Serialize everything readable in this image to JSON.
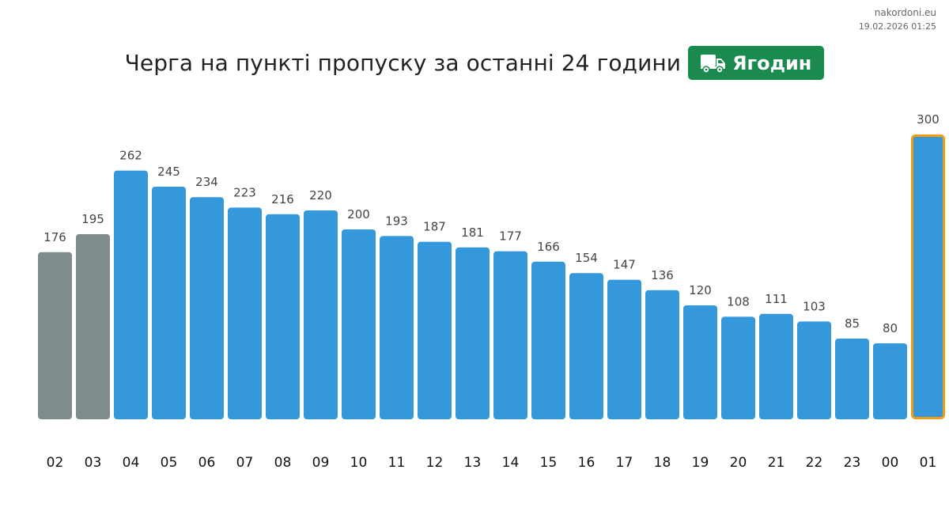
{
  "source": {
    "site": "nakordoni.eu",
    "timestamp": "19.02.2026 01:25"
  },
  "header": {
    "title": "Черга на пункті пропуску за останні 24 години",
    "checkpoint": "Ягодин",
    "checkpoint_icon": "truck-icon",
    "badge_color": "#1a8a4f"
  },
  "chart_data": {
    "type": "bar",
    "categories": [
      "02",
      "03",
      "04",
      "05",
      "06",
      "07",
      "08",
      "09",
      "10",
      "11",
      "12",
      "13",
      "14",
      "15",
      "16",
      "17",
      "18",
      "19",
      "20",
      "21",
      "22",
      "23",
      "00",
      "01"
    ],
    "values": [
      176,
      195,
      262,
      245,
      234,
      223,
      216,
      220,
      200,
      193,
      187,
      181,
      177,
      166,
      154,
      147,
      136,
      120,
      108,
      111,
      103,
      85,
      80,
      300
    ],
    "ylim": [
      0,
      300
    ],
    "grid": false,
    "colors": {
      "past": "#7f8c8d",
      "normal": "#3498db",
      "current_outline": "#f39c12"
    },
    "muted_count": 2,
    "highlight_index": 23
  }
}
